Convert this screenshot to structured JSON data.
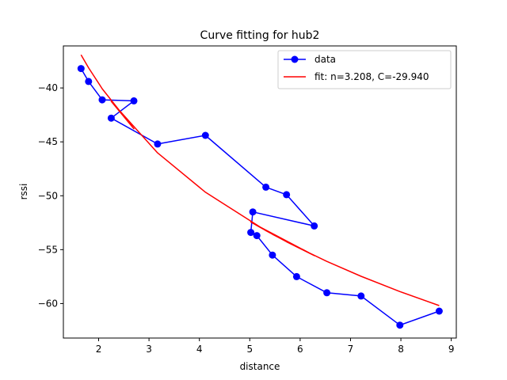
{
  "chart_data": {
    "type": "line",
    "title": "Curve fitting for hub2",
    "xlabel": "distance",
    "ylabel": "rssi",
    "xlim": [
      1.3,
      9.1
    ],
    "ylim": [
      -63.2,
      -36.1
    ],
    "xticks": [
      2,
      3,
      4,
      5,
      6,
      7,
      8,
      9
    ],
    "yticks": [
      -40,
      -45,
      -50,
      -55,
      -60
    ],
    "xtick_labels": [
      "2",
      "3",
      "4",
      "5",
      "6",
      "7",
      "8",
      "9"
    ],
    "ytick_labels": [
      "−40",
      "−45",
      "−50",
      "−55",
      "−60"
    ],
    "grid": false,
    "legend_position": "upper-right",
    "series": [
      {
        "name": "data",
        "color": "#0000ff",
        "marker": "circle",
        "x": [
          1.65,
          1.8,
          2.07,
          2.7,
          2.25,
          3.17,
          4.12,
          5.32,
          5.73,
          6.28,
          5.06,
          5.02,
          5.14,
          5.45,
          5.93,
          6.53,
          7.21,
          7.98,
          8.76
        ],
        "y": [
          -38.2,
          -39.4,
          -41.1,
          -41.2,
          -42.8,
          -45.2,
          -44.4,
          -49.2,
          -49.9,
          -52.8,
          -51.5,
          -53.4,
          -53.7,
          -55.5,
          -57.5,
          -59.0,
          -59.3,
          -62.0,
          -60.7
        ]
      },
      {
        "name": "fit: n=3.208, C=-29.940",
        "color": "#ff0000",
        "marker": "none",
        "x": [
          1.65,
          1.8,
          2.07,
          2.7,
          2.25,
          3.17,
          4.12,
          5.32,
          5.73,
          6.28,
          5.06,
          5.02,
          5.14,
          5.45,
          5.93,
          6.53,
          7.21,
          7.98,
          8.76
        ],
        "y": [
          -36.92,
          -38.13,
          -40.07,
          -43.78,
          -41.24,
          -46.02,
          -49.67,
          -53.24,
          -54.27,
          -55.55,
          -52.54,
          -52.43,
          -52.76,
          -53.57,
          -54.73,
          -56.09,
          -57.47,
          -58.89,
          -60.19
        ]
      }
    ]
  }
}
